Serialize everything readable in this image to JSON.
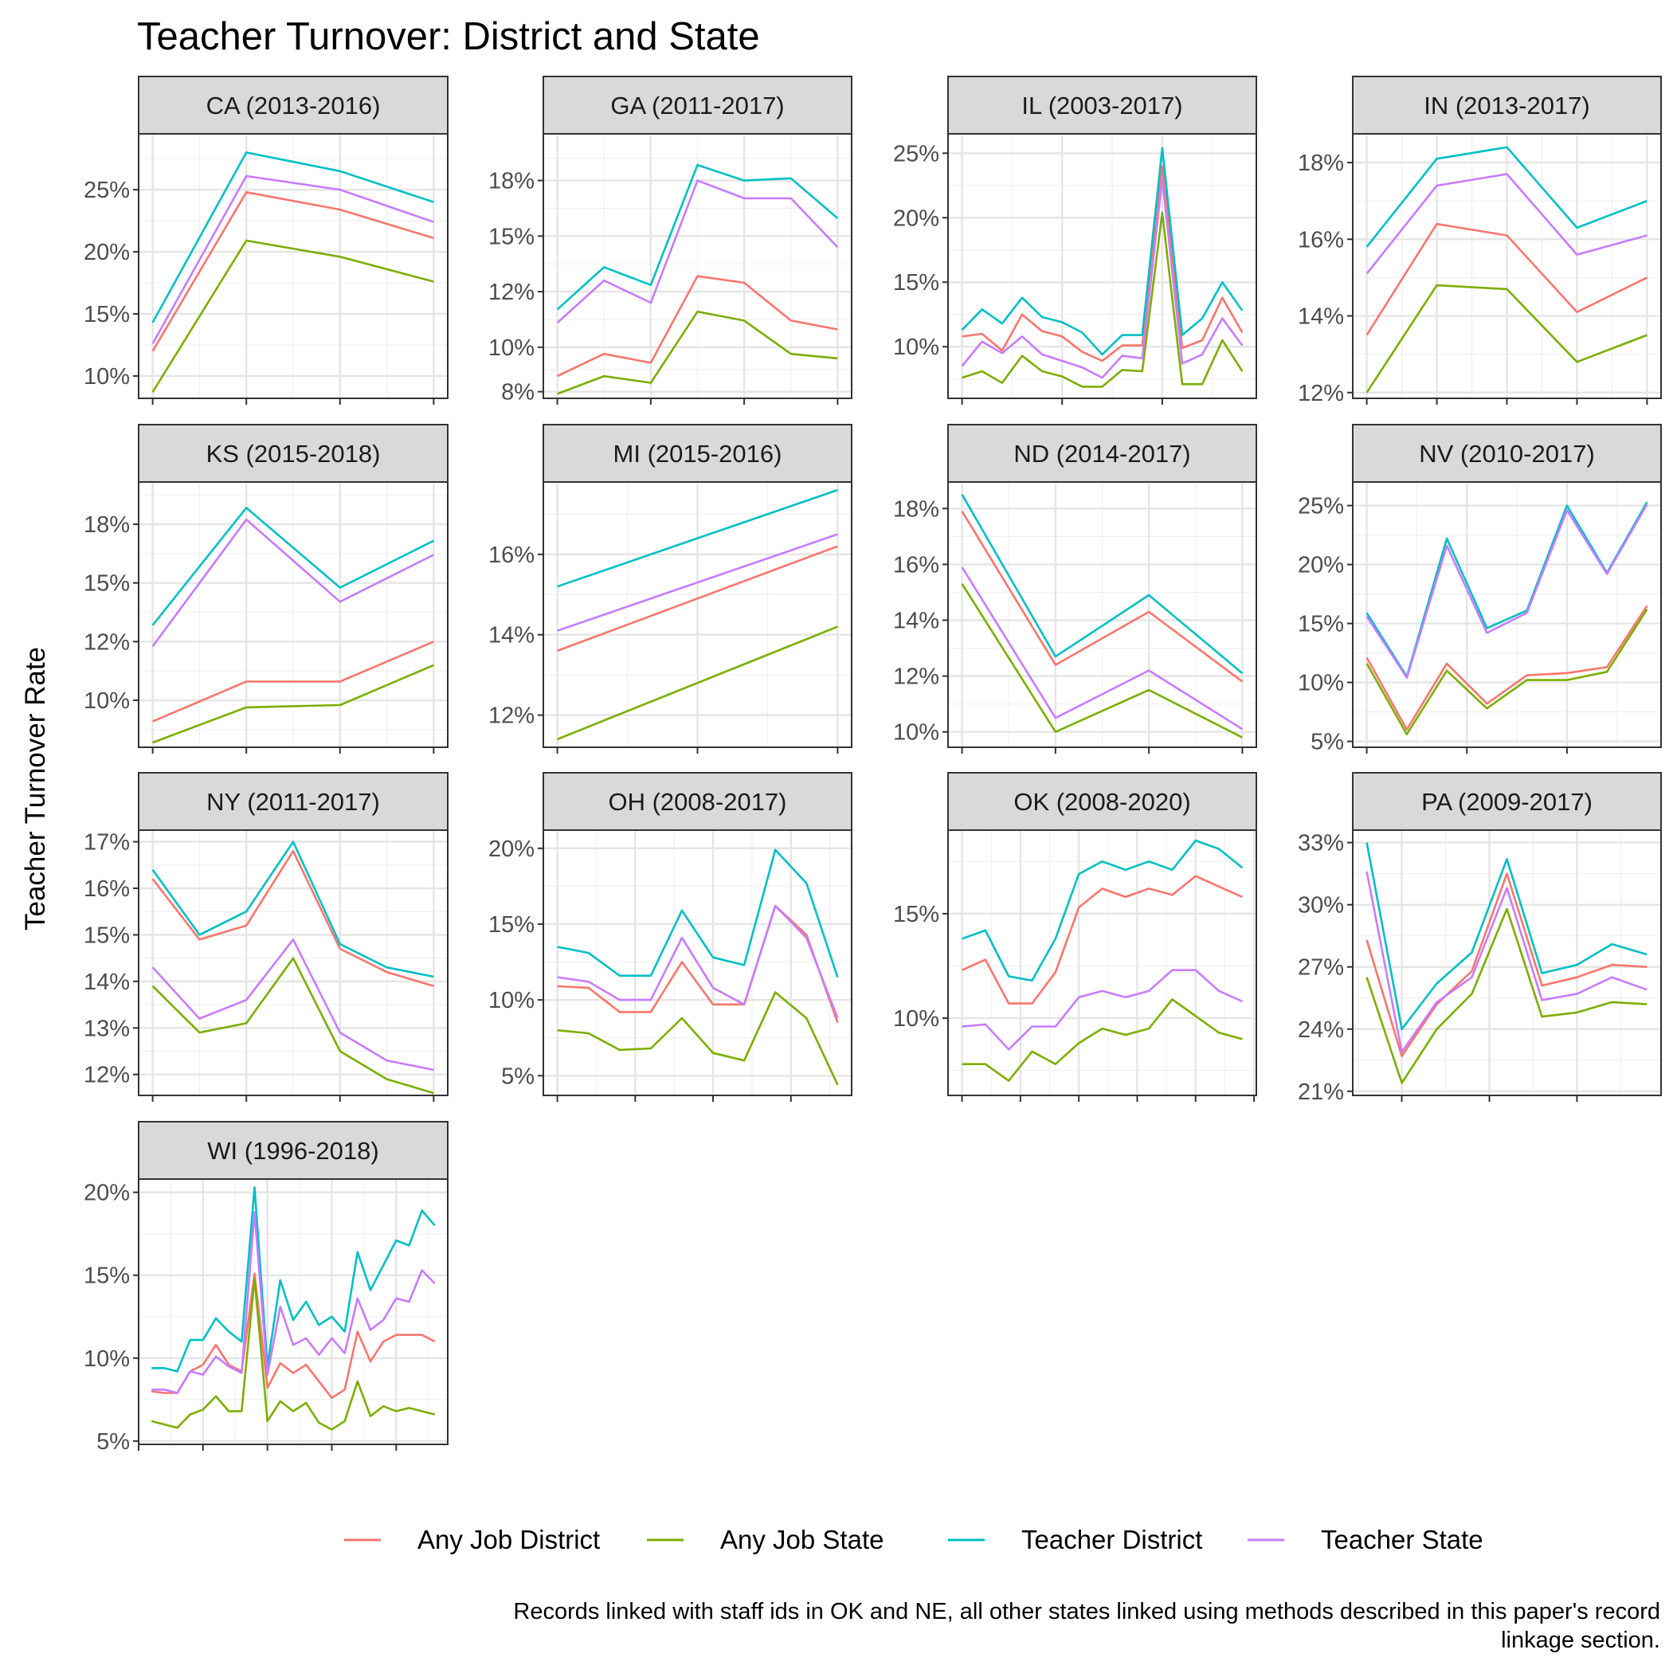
{
  "chart_data": {
    "type": "line",
    "title": "Teacher Turnover: District and State",
    "ylabel": "Teacher Turnover Rate",
    "xlabel": "",
    "grid": true,
    "legend_position": "bottom",
    "series_names": [
      "Any Job District",
      "Any Job State",
      "Teacher District",
      "Teacher State"
    ],
    "colors": {
      "Any Job District": "#F8766D",
      "Any Job State": "#7CAE00",
      "Teacher District": "#00BFC4",
      "Teacher State": "#C77CFF"
    },
    "caption_lines": [
      "Records linked with staff ids in OK and NE, all other states linked using methods described in this paper's record",
      "linkage section."
    ],
    "panels": [
      {
        "label": "CA (2013-2016)",
        "ylim": [
          8.2,
          29.5
        ],
        "yticks": [
          10,
          15,
          20,
          25
        ],
        "ytick_labels": [
          "10%",
          "15%",
          "20%",
          "25%"
        ],
        "x_points": [
          0,
          1,
          2,
          3
        ],
        "xlim": [
          -0.15,
          3.15
        ],
        "xticks": [
          0,
          1,
          2,
          3
        ],
        "series": {
          "Any Job District": [
            12.0,
            24.8,
            23.4,
            21.1
          ],
          "Any Job State": [
            8.7,
            20.9,
            19.6,
            17.6
          ],
          "Teacher District": [
            14.3,
            28.0,
            26.5,
            24.0
          ],
          "Teacher State": [
            12.6,
            26.1,
            25.0,
            22.4
          ]
        }
      },
      {
        "label": "GA (2011-2017)",
        "ylim": [
          7.7,
          19.6
        ],
        "yticks": [
          8,
          10,
          12,
          15,
          18
        ],
        "ytick_labels": [
          "8%",
          "10%",
          "12%",
          "15%",
          "18%"
        ],
        "tick_values": [
          8,
          10,
          12.5,
          15,
          17.5
        ],
        "x_points": [
          0,
          1,
          2,
          3,
          4,
          5,
          6
        ],
        "xlim": [
          -0.3,
          6.3
        ],
        "xticks": [
          0,
          2,
          4,
          6
        ],
        "series": {
          "Any Job District": [
            8.7,
            9.7,
            9.3,
            13.2,
            12.9,
            11.2,
            10.8
          ],
          "Any Job State": [
            7.9,
            8.7,
            8.4,
            11.6,
            11.2,
            9.7,
            9.5
          ],
          "Teacher District": [
            11.7,
            13.6,
            12.8,
            18.2,
            17.5,
            17.6,
            15.8
          ],
          "Teacher State": [
            11.1,
            13.0,
            12.0,
            17.5,
            16.7,
            16.7,
            14.5
          ]
        }
      },
      {
        "label": "IL (2003-2017)",
        "ylim": [
          6.0,
          26.5
        ],
        "yticks": [
          10,
          15,
          20,
          25
        ],
        "ytick_labels": [
          "10%",
          "15%",
          "20%",
          "25%"
        ],
        "x_points": [
          0,
          1,
          2,
          3,
          4,
          5,
          6,
          7,
          8,
          9,
          10,
          11,
          12,
          13,
          14
        ],
        "xlim": [
          -0.7,
          14.7
        ],
        "xticks": [
          0,
          5,
          10,
          15
        ],
        "series": {
          "Any Job District": [
            10.8,
            11.0,
            9.7,
            12.5,
            11.2,
            10.8,
            9.6,
            8.9,
            10.1,
            10.1,
            24.0,
            9.9,
            10.5,
            13.8,
            11.1
          ],
          "Any Job State": [
            7.6,
            8.1,
            7.2,
            9.3,
            8.1,
            7.7,
            6.9,
            6.9,
            8.2,
            8.1,
            20.4,
            7.1,
            7.1,
            10.5,
            8.1
          ],
          "Teacher District": [
            11.3,
            12.9,
            11.8,
            13.8,
            12.3,
            11.9,
            11.1,
            9.4,
            10.9,
            10.9,
            25.4,
            10.9,
            12.2,
            15.0,
            12.8
          ],
          "Teacher State": [
            8.5,
            10.4,
            9.5,
            10.8,
            9.4,
            8.9,
            8.4,
            7.6,
            9.3,
            9.1,
            23.0,
            8.7,
            9.4,
            12.2,
            10.1
          ]
        }
      },
      {
        "label": "IN (2013-2017)",
        "ylim": [
          11.85,
          18.75
        ],
        "yticks": [
          12,
          14,
          16,
          18
        ],
        "ytick_labels": [
          "12%",
          "14%",
          "16%",
          "18%"
        ],
        "x_points": [
          0,
          1,
          2,
          3,
          4
        ],
        "xlim": [
          -0.2,
          4.2
        ],
        "xticks": [
          0,
          1,
          2,
          3,
          4
        ],
        "series": {
          "Any Job District": [
            13.5,
            16.4,
            16.1,
            14.1,
            15.0
          ],
          "Any Job State": [
            12.0,
            14.8,
            14.7,
            12.8,
            13.5
          ],
          "Teacher District": [
            15.8,
            18.1,
            18.4,
            16.3,
            17.0
          ],
          "Teacher State": [
            15.1,
            17.4,
            17.7,
            15.6,
            16.1
          ]
        }
      },
      {
        "label": "KS (2015-2018)",
        "ylim": [
          8.0,
          19.3
        ],
        "yticks": [
          10,
          12,
          15,
          18
        ],
        "ytick_labels": [
          "10%",
          "12%",
          "15%",
          "18%"
        ],
        "tick_values": [
          10,
          12.5,
          15,
          17.5
        ],
        "x_points": [
          0,
          1,
          2,
          3
        ],
        "xlim": [
          -0.15,
          3.15
        ],
        "xticks": [
          0,
          1,
          2,
          3
        ],
        "series": {
          "Any Job District": [
            9.1,
            10.8,
            10.8,
            12.5
          ],
          "Any Job State": [
            8.2,
            9.7,
            9.8,
            11.5
          ],
          "Teacher District": [
            13.2,
            18.2,
            14.8,
            16.8
          ],
          "Teacher State": [
            12.3,
            17.7,
            14.2,
            16.2
          ]
        }
      },
      {
        "label": "MI (2015-2016)",
        "ylim": [
          11.2,
          17.8
        ],
        "yticks": [
          12,
          14,
          16
        ],
        "ytick_labels": [
          "12%",
          "14%",
          "16%"
        ],
        "x_points": [
          0,
          1
        ],
        "xlim": [
          -0.05,
          1.05
        ],
        "xticks": [
          0,
          0.5,
          1
        ],
        "series": {
          "Any Job District": [
            13.6,
            16.2
          ],
          "Any Job State": [
            11.4,
            14.2
          ],
          "Teacher District": [
            15.2,
            17.6
          ],
          "Teacher State": [
            14.1,
            16.5
          ]
        }
      },
      {
        "label": "ND (2014-2017)",
        "ylim": [
          9.45,
          18.95
        ],
        "yticks": [
          10,
          12,
          14,
          16,
          18
        ],
        "ytick_labels": [
          "10%",
          "12%",
          "14%",
          "16%",
          "18%"
        ],
        "x_points": [
          0,
          1,
          2,
          3
        ],
        "xlim": [
          -0.15,
          3.15
        ],
        "xticks": [
          0,
          1,
          2,
          3
        ],
        "series": {
          "Any Job District": [
            17.9,
            12.4,
            14.3,
            11.8
          ],
          "Any Job State": [
            15.3,
            10.0,
            11.5,
            9.8
          ],
          "Teacher District": [
            18.5,
            12.7,
            14.9,
            12.1
          ],
          "Teacher State": [
            15.9,
            10.5,
            12.2,
            10.1
          ]
        }
      },
      {
        "label": "NV (2010-2017)",
        "ylim": [
          4.5,
          27.0
        ],
        "yticks": [
          5,
          10,
          15,
          20,
          25
        ],
        "ytick_labels": [
          "5%",
          "10%",
          "15%",
          "20%",
          "25%"
        ],
        "x_points": [
          0,
          1,
          2,
          3,
          4,
          5,
          6,
          7
        ],
        "xlim": [
          -0.35,
          7.35
        ],
        "xticks": [
          0,
          2.5,
          5,
          7.5
        ],
        "series": {
          "Any Job District": [
            12.1,
            6.0,
            11.6,
            8.2,
            10.6,
            10.8,
            11.3,
            16.5
          ],
          "Any Job State": [
            11.6,
            5.6,
            11.0,
            7.8,
            10.2,
            10.2,
            10.9,
            16.2
          ],
          "Teacher District": [
            15.9,
            10.5,
            22.2,
            14.6,
            16.1,
            25.0,
            19.3,
            25.3
          ],
          "Teacher State": [
            15.6,
            10.4,
            21.6,
            14.2,
            15.9,
            24.6,
            19.2,
            25.1
          ]
        }
      },
      {
        "label": "NY (2011-2017)",
        "ylim": [
          11.55,
          17.25
        ],
        "yticks": [
          12,
          13,
          14,
          15,
          16,
          17
        ],
        "ytick_labels": [
          "12%",
          "13%",
          "14%",
          "15%",
          "16%",
          "17%"
        ],
        "x_points": [
          0,
          1,
          2,
          3,
          4,
          5,
          6
        ],
        "xlim": [
          -0.3,
          6.3
        ],
        "xticks": [
          0,
          2,
          4,
          6
        ],
        "series": {
          "Any Job District": [
            16.2,
            14.9,
            15.2,
            16.8,
            14.7,
            14.2,
            13.9
          ],
          "Any Job State": [
            13.9,
            12.9,
            13.1,
            14.5,
            12.5,
            11.9,
            11.6
          ],
          "Teacher District": [
            16.4,
            15.0,
            15.5,
            17.0,
            14.8,
            14.3,
            14.1
          ],
          "Teacher State": [
            14.3,
            13.2,
            13.6,
            14.9,
            12.9,
            12.3,
            12.1
          ]
        }
      },
      {
        "label": "OH (2008-2017)",
        "ylim": [
          3.7,
          21.2
        ],
        "yticks": [
          5,
          10,
          15,
          20
        ],
        "ytick_labels": [
          "5%",
          "10%",
          "15%",
          "20%"
        ],
        "x_points": [
          0,
          1,
          2,
          3,
          4,
          5,
          6,
          7,
          8,
          9
        ],
        "xlim": [
          -0.45,
          9.45
        ],
        "xticks": [
          0,
          2.5,
          5,
          7.5
        ],
        "series": {
          "Any Job District": [
            10.9,
            10.8,
            9.2,
            9.2,
            12.5,
            9.7,
            9.7,
            16.2,
            14.3,
            8.5
          ],
          "Any Job State": [
            8.0,
            7.8,
            6.7,
            6.8,
            8.8,
            6.5,
            6.0,
            10.5,
            8.8,
            4.4
          ],
          "Teacher District": [
            13.5,
            13.1,
            11.6,
            11.6,
            15.9,
            12.8,
            12.3,
            19.9,
            17.7,
            11.5
          ],
          "Teacher State": [
            11.5,
            11.2,
            10.0,
            10.0,
            14.1,
            10.8,
            9.7,
            16.2,
            14.1,
            8.8
          ]
        }
      },
      {
        "label": "OK (2008-2020)",
        "ylim": [
          6.3,
          19.0
        ],
        "yticks": [
          10,
          15
        ],
        "ytick_labels": [
          "10%",
          "15%"
        ],
        "x_points": [
          0,
          1,
          2,
          3,
          4,
          5,
          6,
          7,
          8,
          9,
          10,
          11,
          12
        ],
        "xlim": [
          -0.6,
          12.6
        ],
        "xticks": [
          0,
          2.5,
          5,
          7.5,
          10,
          12.5
        ],
        "series": {
          "Any Job District": [
            12.3,
            12.8,
            10.7,
            10.7,
            12.2,
            15.3,
            16.2,
            15.8,
            16.2,
            15.9,
            16.8,
            16.3,
            15.8
          ],
          "Any Job State": [
            7.8,
            7.8,
            7.0,
            8.4,
            7.8,
            8.8,
            9.5,
            9.2,
            9.5,
            10.9,
            10.1,
            9.3,
            9.0
          ],
          "Teacher District": [
            13.8,
            14.2,
            12.0,
            11.8,
            13.8,
            16.9,
            17.5,
            17.1,
            17.5,
            17.1,
            18.5,
            18.1,
            17.2
          ],
          "Teacher State": [
            9.6,
            9.7,
            8.5,
            9.6,
            9.6,
            11.0,
            11.3,
            11.0,
            11.3,
            12.3,
            12.3,
            11.3,
            10.8
          ]
        }
      },
      {
        "label": "PA (2009-2017)",
        "ylim": [
          20.8,
          33.6
        ],
        "yticks": [
          21,
          24,
          27,
          30,
          33
        ],
        "ytick_labels": [
          "21%",
          "24%",
          "27%",
          "30%",
          "33%"
        ],
        "x_points": [
          0,
          1,
          2,
          3,
          4,
          5,
          6,
          7,
          8
        ],
        "xlim": [
          -0.4,
          8.4
        ],
        "xticks": [
          1,
          3.5,
          6
        ],
        "series": {
          "Any Job District": [
            28.3,
            22.7,
            25.2,
            26.8,
            31.5,
            26.1,
            26.5,
            27.1,
            27.0
          ],
          "Any Job State": [
            26.5,
            21.4,
            24.0,
            25.7,
            29.8,
            24.6,
            24.8,
            25.3,
            25.2
          ],
          "Teacher District": [
            33.0,
            24.0,
            26.2,
            27.7,
            32.2,
            26.7,
            27.1,
            28.1,
            27.6
          ],
          "Teacher State": [
            31.6,
            22.9,
            25.3,
            26.5,
            30.8,
            25.4,
            25.7,
            26.5,
            25.9
          ]
        }
      },
      {
        "label": "WI (1996-2018)",
        "ylim": [
          4.8,
          20.8
        ],
        "yticks": [
          5,
          10,
          15,
          20
        ],
        "ytick_labels": [
          "5%",
          "10%",
          "15%",
          "20%"
        ],
        "x_points": [
          0,
          1,
          2,
          3,
          4,
          5,
          6,
          7,
          8,
          9,
          10,
          11,
          12,
          13,
          14,
          15,
          16,
          17,
          18,
          19,
          20,
          21,
          22
        ],
        "xlim": [
          -1.0,
          23.0
        ],
        "xticks": [
          -1,
          4,
          9,
          14,
          19
        ],
        "series": {
          "Any Job District": [
            8.0,
            7.9,
            7.9,
            9.2,
            9.6,
            10.8,
            9.6,
            9.2,
            15.1,
            8.2,
            9.7,
            9.1,
            9.6,
            8.6,
            7.6,
            8.1,
            11.6,
            9.8,
            11.0,
            11.4,
            11.4,
            11.4,
            11.0
          ],
          "Any Job State": [
            6.2,
            6.0,
            5.8,
            6.6,
            6.9,
            7.7,
            6.8,
            6.8,
            14.8,
            6.2,
            7.4,
            6.8,
            7.3,
            6.1,
            5.7,
            6.2,
            8.6,
            6.5,
            7.1,
            6.8,
            7.0,
            6.8,
            6.6
          ],
          "Teacher District": [
            9.4,
            9.4,
            9.2,
            11.1,
            11.1,
            12.4,
            11.6,
            11.0,
            20.3,
            9.5,
            14.7,
            12.3,
            13.4,
            12.0,
            12.5,
            11.6,
            16.4,
            14.1,
            15.6,
            17.1,
            16.8,
            18.9,
            18.0
          ],
          "Teacher State": [
            8.1,
            8.1,
            7.9,
            9.2,
            9.0,
            10.1,
            9.5,
            9.1,
            18.8,
            9.0,
            13.1,
            10.8,
            11.2,
            10.2,
            11.2,
            10.3,
            13.6,
            11.7,
            12.3,
            13.6,
            13.4,
            15.3,
            14.5
          ]
        }
      }
    ]
  }
}
